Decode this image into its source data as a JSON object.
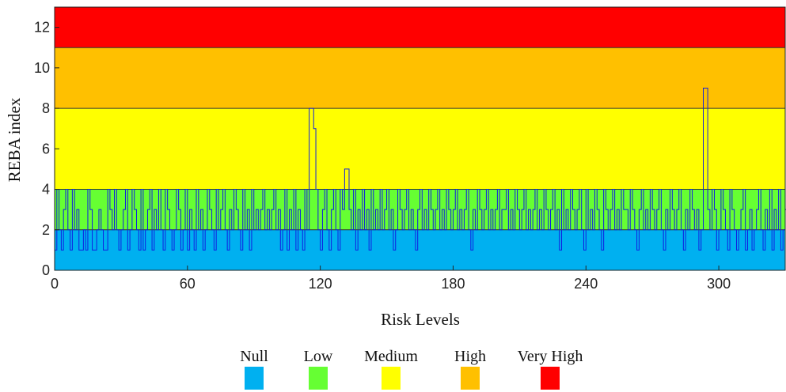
{
  "chart_data": {
    "type": "line",
    "title": "",
    "xlabel": "Risk Levels",
    "ylabel": "REBA index",
    "xlim": [
      0,
      330
    ],
    "ylim": [
      0,
      13
    ],
    "xticks": [
      0,
      60,
      120,
      180,
      240,
      300
    ],
    "yticks": [
      0,
      2,
      4,
      6,
      8,
      10,
      12
    ],
    "grid": false,
    "bands": [
      {
        "name": "Null",
        "from": 0,
        "to": 2,
        "color": "#00b0f0"
      },
      {
        "name": "Low",
        "from": 2,
        "to": 4,
        "color": "#66ff33"
      },
      {
        "name": "Medium",
        "from": 4,
        "to": 8,
        "color": "#ffff00"
      },
      {
        "name": "High",
        "from": 8,
        "to": 11,
        "color": "#ffc000"
      },
      {
        "name": "Very High",
        "from": 11,
        "to": 13,
        "color": "#ff0000"
      }
    ],
    "legend": {
      "placement": "bottom-center",
      "items": [
        "Null",
        "Low",
        "Medium",
        "High",
        "Very High"
      ]
    },
    "series": [
      {
        "line_color": "#1020e0",
        "step": true,
        "x_start": 0,
        "x_step": 1,
        "values": [
          1,
          4,
          2,
          1,
          3,
          4,
          2,
          1,
          4,
          2,
          3,
          1,
          1,
          2,
          1,
          4,
          3,
          1,
          1,
          2,
          3,
          2,
          1,
          1,
          4,
          3,
          2,
          4,
          2,
          1,
          2,
          3,
          4,
          1,
          2,
          4,
          3,
          2,
          1,
          4,
          1,
          2,
          3,
          4,
          1,
          3,
          2,
          4,
          2,
          1,
          4,
          3,
          2,
          1,
          2,
          4,
          3,
          1,
          2,
          4,
          1,
          3,
          2,
          1,
          4,
          2,
          3,
          1,
          2,
          4,
          3,
          2,
          1,
          4,
          2,
          3,
          4,
          2,
          1,
          3,
          2,
          4,
          3,
          2,
          1,
          4,
          2,
          3,
          1,
          4,
          2,
          3,
          2,
          3,
          4,
          2,
          3,
          2,
          3,
          4,
          2,
          3,
          1,
          2,
          4,
          1,
          3,
          2,
          4,
          1,
          3,
          2,
          1,
          4,
          2,
          8,
          8,
          7,
          4,
          2,
          1,
          3,
          4,
          2,
          1,
          3,
          4,
          2,
          1,
          4,
          3,
          5,
          5,
          3,
          2,
          4,
          1,
          3,
          2,
          4,
          2,
          3,
          1,
          4,
          2,
          3,
          2,
          4,
          2,
          3,
          4,
          2,
          3,
          1,
          2,
          4,
          3,
          2,
          3,
          4,
          2,
          3,
          2,
          1,
          3,
          4,
          2,
          3,
          2,
          4,
          3,
          2,
          3,
          4,
          2,
          3,
          2,
          4,
          3,
          2,
          3,
          4,
          2,
          3,
          2,
          3,
          4,
          2,
          1,
          3,
          2,
          4,
          3,
          2,
          3,
          4,
          2,
          3,
          2,
          3,
          4,
          2,
          3,
          3,
          4,
          2,
          3,
          2,
          4,
          3,
          2,
          3,
          4,
          2,
          3,
          2,
          3,
          4,
          2,
          3,
          2,
          4,
          3,
          2,
          3,
          4,
          2,
          3,
          1,
          4,
          2,
          3,
          2,
          4,
          3,
          2,
          3,
          4,
          2,
          1,
          4,
          2,
          3,
          2,
          4,
          3,
          2,
          1,
          4,
          3,
          2,
          3,
          4,
          2,
          3,
          2,
          4,
          3,
          3,
          2,
          4,
          3,
          2,
          1,
          3,
          4,
          2,
          3,
          2,
          4,
          3,
          2,
          3,
          4,
          2,
          1,
          3,
          2,
          4,
          3,
          2,
          3,
          4,
          2,
          1,
          3,
          2,
          4,
          3,
          2,
          3,
          1,
          2,
          9,
          9,
          3,
          2,
          4,
          3,
          1,
          2,
          4,
          3,
          2,
          1,
          4,
          3,
          2,
          1,
          2,
          3,
          4,
          1,
          2,
          3,
          1,
          2,
          3,
          4,
          2,
          1,
          3,
          2,
          4,
          1,
          3,
          2,
          4,
          1,
          2,
          3,
          1
        ]
      }
    ]
  }
}
